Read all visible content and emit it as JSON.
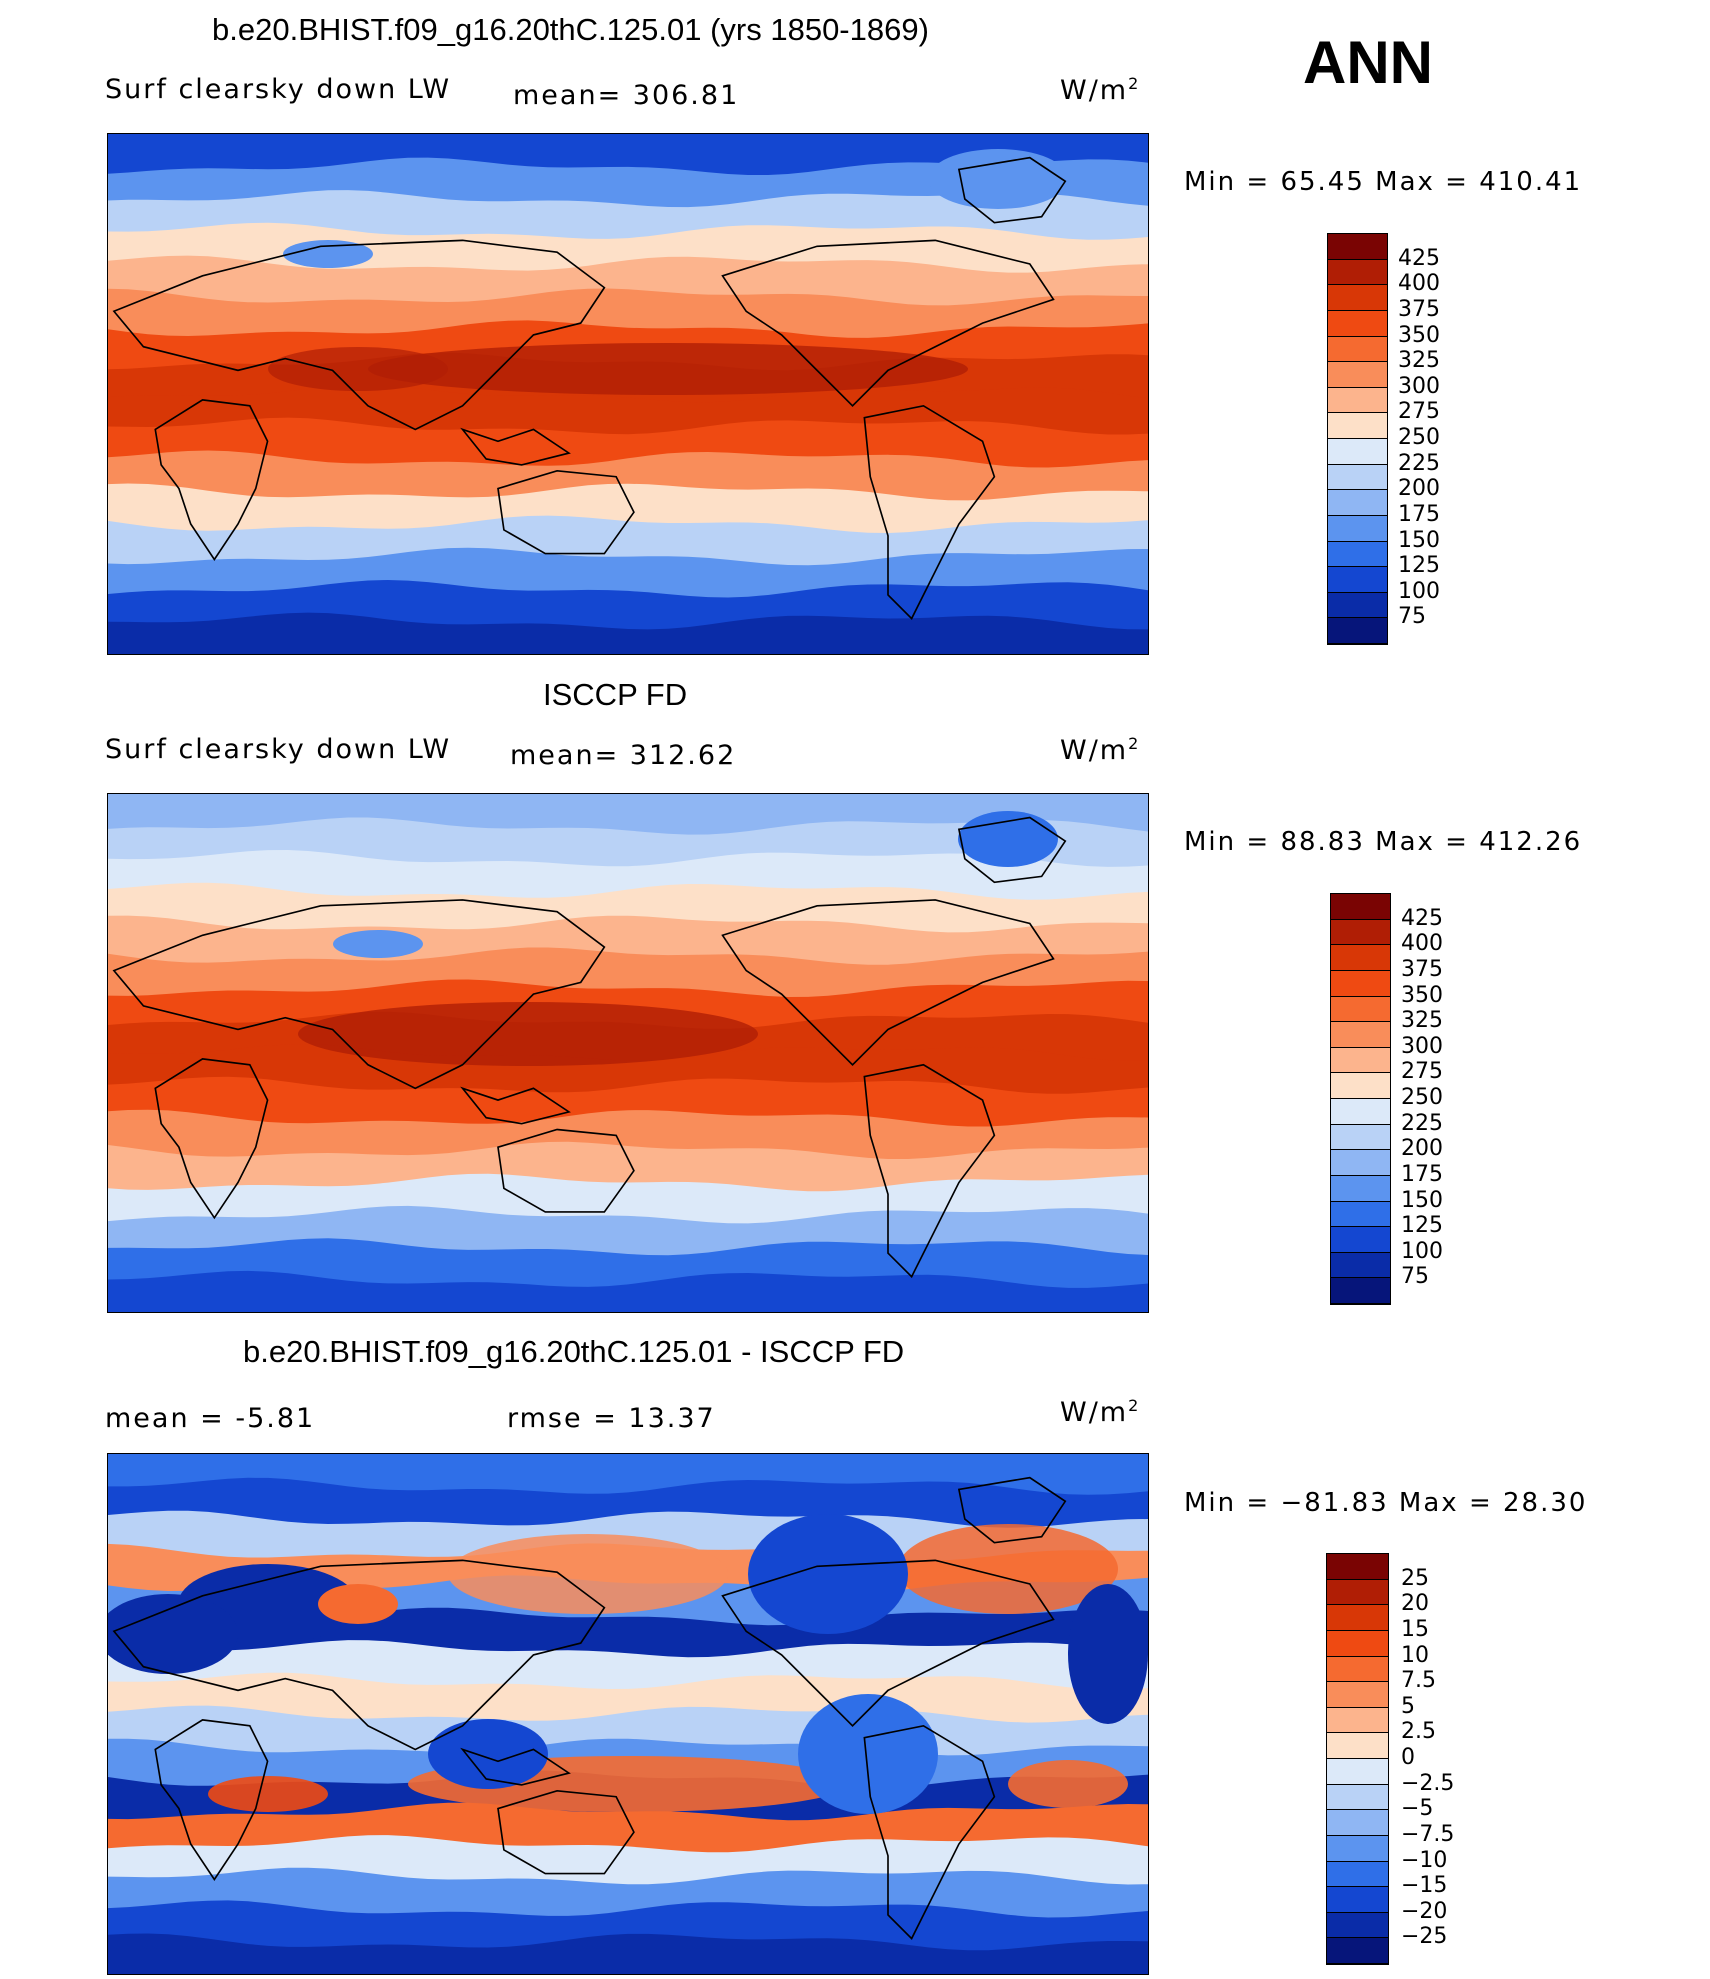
{
  "header": {
    "season": "ANN"
  },
  "panels": [
    {
      "title": "b.e20.BHIST.f09_g16.20thC.125.01 (yrs 1850-1869)",
      "left_label": "Surf clearsky down LW",
      "mid_label": "mean= 306.81",
      "units": "W/m",
      "units_sup": "2",
      "minmax": "Min =   65.45 Max = 410.41",
      "map_kind": "absolute"
    },
    {
      "title": "ISCCP FD",
      "left_label": "Surf clearsky down LW",
      "mid_label": "mean= 312.62",
      "units": "W/m",
      "units_sup": "2",
      "minmax": "Min =   88.83 Max = 412.26",
      "map_kind": "absolute"
    },
    {
      "title": "b.e20.BHIST.f09_g16.20thC.125.01 - ISCCP FD",
      "left_label": "mean =   -5.81",
      "mid_label": "rmse =   13.37",
      "units": "W/m",
      "units_sup": "2",
      "minmax": "Min = −81.83 Max =   28.30",
      "map_kind": "difference"
    }
  ],
  "colorbars": {
    "absolute": {
      "ticks": [
        "425",
        "400",
        "375",
        "350",
        "325",
        "300",
        "275",
        "250",
        "225",
        "200",
        "175",
        "150",
        "125",
        "100",
        "75"
      ],
      "colors": [
        "#7a0403",
        "#b01e05",
        "#d83706",
        "#ef4a12",
        "#f56a30",
        "#f98d5a",
        "#fcb48d",
        "#fde0c8",
        "#dce9f9",
        "#b9d2f6",
        "#8fb6f3",
        "#5c94ef",
        "#2f6fe8",
        "#1447d1",
        "#0a2ca8",
        "#06157a"
      ]
    },
    "difference": {
      "ticks": [
        "25",
        "20",
        "15",
        "10",
        "7.5",
        "5",
        "2.5",
        "0",
        "−2.5",
        "−5",
        "−7.5",
        "−10",
        "−15",
        "−20",
        "−25"
      ],
      "colors": [
        "#7a0403",
        "#b01e05",
        "#d83706",
        "#ef4a12",
        "#f56a30",
        "#f98d5a",
        "#fcb48d",
        "#fde0c8",
        "#dce9f9",
        "#b9d2f6",
        "#8fb6f3",
        "#5c94ef",
        "#2f6fe8",
        "#1447d1",
        "#0a2ca8",
        "#06157a"
      ]
    }
  },
  "map_bands": {
    "absolute_1": [
      "#1447d1",
      "#5c94ef",
      "#b9d2f6",
      "#fde0c8",
      "#fcb48d",
      "#f98d5a",
      "#ef4a12",
      "#d83706",
      "#d83706",
      "#ef4a12",
      "#f98d5a",
      "#fde0c8",
      "#b9d2f6",
      "#5c94ef",
      "#1447d1",
      "#0a2ca8"
    ],
    "absolute_2": [
      "#8fb6f3",
      "#b9d2f6",
      "#dce9f9",
      "#fde0c8",
      "#fcb48d",
      "#f98d5a",
      "#ef4a12",
      "#d83706",
      "#d83706",
      "#ef4a12",
      "#f98d5a",
      "#fcb48d",
      "#dce9f9",
      "#8fb6f3",
      "#2f6fe8",
      "#1447d1"
    ],
    "difference": [
      "#2f6fe8",
      "#1447d1",
      "#b9d2f6",
      "#f98d5a",
      "#5c94ef",
      "#0a2ca8",
      "#dce9f9",
      "#fde0c8",
      "#b9d2f6",
      "#5c94ef",
      "#0a2ca8",
      "#f56a30",
      "#dce9f9",
      "#5c94ef",
      "#1447d1",
      "#0a2ca8"
    ]
  }
}
